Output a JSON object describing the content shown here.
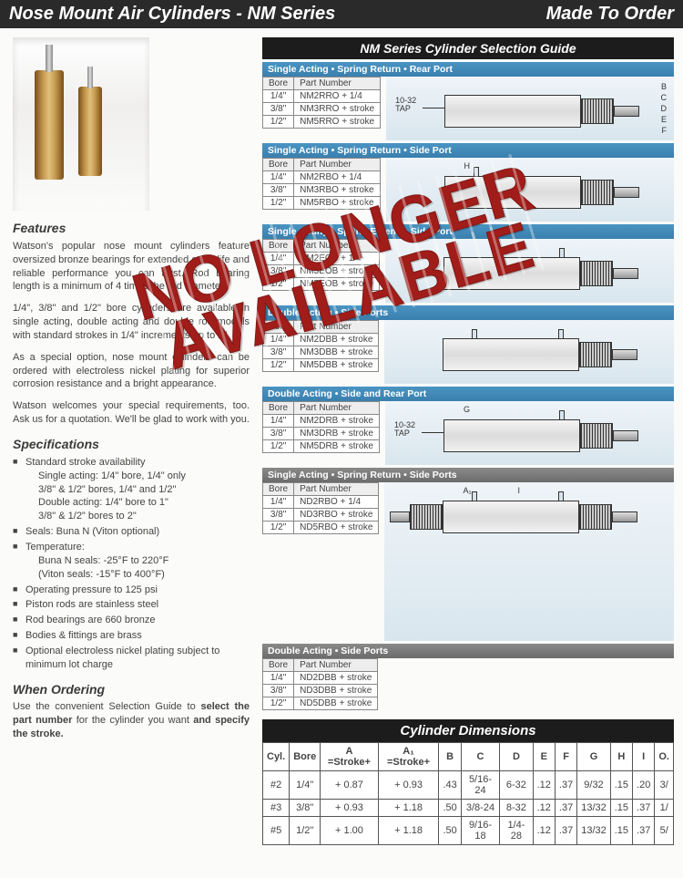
{
  "header": {
    "left": "Nose Mount Air Cylinders - NM Series",
    "right": "Made To Order"
  },
  "stamp": {
    "line1": "NO LONGER",
    "line2": "AVAILABLE",
    "color": "#a11d1a"
  },
  "features": {
    "title": "Features",
    "p1": "Watson's popular nose mount cylinders feature oversized bronze bearings for extended cycle life and reliable performance you can trust. Rod bearing length is a minimum of 4 times the rod diameter.",
    "p2": "1/4\", 3/8\" and 1/2\" bore cylinders are available in single acting, double acting and double rod models with standard strokes in 1/4\" increments up to 2\".",
    "p3": "As a special option, nose mount cylinders can be ordered with electroless nickel plating for superior corrosion resistance and a bright appearance.",
    "p4": "Watson welcomes your special requirements, too. Ask us for a quotation. We'll be glad to work with you."
  },
  "specs": {
    "title": "Specifications",
    "items": [
      "Standard stroke availability\nSingle acting: 1/4\" bore, 1/4\" only\n3/8\" & 1/2\" bores, 1/4\" and 1/2\"\nDouble acting: 1/4\" bore to 1\"\n3/8\" & 1/2\" bores to 2\"",
      "Seals: Buna N (Viton optional)",
      "Temperature:\nBuna N seals: -25°F to 220°F\n(Viton seals: -15°F to 400°F)",
      "Operating pressure to 125 psi",
      "Piston rods are stainless steel",
      "Rod bearings are 660 bronze",
      "Bodies & fittings are brass",
      "Optional electroless nickel plating subject to minimum lot charge"
    ]
  },
  "ordering": {
    "title": "When Ordering",
    "text": "Use the convenient Selection Guide to select the part number for the cylinder you want and specify the stroke."
  },
  "guide": {
    "title": "NM Series Cylinder Selection Guide",
    "configs": [
      {
        "heading": "Single Acting  •  Spring Return  •  Rear Port",
        "bore_header": "Bore",
        "pn_header": "Part Number",
        "rows": [
          [
            "1/4\"",
            "NM2RRO + 1/4"
          ],
          [
            "3/8\"",
            "NM3RRO + stroke"
          ],
          [
            "1/2\"",
            "NM5RRO + stroke"
          ]
        ],
        "tap": "10-32 TAP",
        "dims": [
          "B",
          "C",
          "D",
          "E",
          "F"
        ],
        "ports": []
      },
      {
        "heading": "Single Acting  •  Spring Return  •  Side Port",
        "bore_header": "Bore",
        "pn_header": "Part Number",
        "rows": [
          [
            "1/4\"",
            "NM2RBO + 1/4"
          ],
          [
            "3/8\"",
            "NM3RBO + stroke"
          ],
          [
            "1/2\"",
            "NM5RBO + stroke"
          ]
        ],
        "dims": [
          "H"
        ],
        "ports": [
          90
        ]
      },
      {
        "heading": "Single Acting  •  Spring Extend  •  Side Port",
        "bore_header": "Bore",
        "pn_header": "Part Number",
        "rows": [
          [
            "1/4\"",
            "NM2EOB + 1/4"
          ],
          [
            "3/8\"",
            "NM3EOB + stroke"
          ],
          [
            "1/2\"",
            "NM5EOB + stroke"
          ]
        ],
        "ports": [
          185
        ]
      },
      {
        "heading": "Double Acting  •  Side Ports",
        "bore_header": "Bore",
        "pn_header": "Part Number",
        "rows": [
          [
            "1/4\"",
            "NM2DBB + stroke"
          ],
          [
            "3/8\"",
            "NM3DBB + stroke"
          ],
          [
            "1/2\"",
            "NM5DBB + stroke"
          ]
        ],
        "ports": [
          90,
          185
        ]
      },
      {
        "heading": "Double Acting  •  Side and Rear Port",
        "bore_header": "Bore",
        "pn_header": "Part Number",
        "rows": [
          [
            "1/4\"",
            "NM2DRB + stroke"
          ],
          [
            "3/8\"",
            "NM3DRB + stroke"
          ],
          [
            "1/2\"",
            "NM5DRB + stroke"
          ]
        ],
        "tap": "10-32 TAP",
        "dims": [
          "G"
        ],
        "ports": [
          185
        ]
      },
      {
        "heading": "Single Acting  •  Spring Return  •  Side Ports",
        "grey": true,
        "bore_header": "Bore",
        "pn_header": "Part Number",
        "rows": [
          [
            "1/4\"",
            "ND2RBO + 1/4"
          ],
          [
            "3/8\"",
            "ND3RBO + stroke"
          ],
          [
            "1/2\"",
            "ND5RBO + stroke"
          ]
        ],
        "dims": [
          "A₁",
          "I"
        ],
        "ports": [
          90,
          185
        ],
        "double_rod": true
      },
      {
        "heading": "Double Acting  •  Side Ports",
        "grey": true,
        "bore_header": "Bore",
        "pn_header": "Part Number",
        "rows": [
          [
            "1/4\"",
            "ND2DBB + stroke"
          ],
          [
            "3/8\"",
            "ND3DBB + stroke"
          ],
          [
            "1/2\"",
            "ND5DBB + stroke"
          ]
        ],
        "merge_diagram_with_prev": true
      }
    ]
  },
  "dim_table": {
    "title": "Cylinder Dimensions",
    "headers": [
      "Cyl.",
      "Bore",
      "A =Stroke+",
      "A₁ =Stroke+",
      "B",
      "C",
      "D",
      "E",
      "F",
      "G",
      "H",
      "I",
      "O."
    ],
    "rows": [
      [
        "#2",
        "1/4\"",
        "+ 0.87",
        "+ 0.93",
        ".43",
        "5/16-24",
        "6-32",
        ".12",
        ".37",
        "9/32",
        ".15",
        ".20",
        "3/"
      ],
      [
        "#3",
        "3/8\"",
        "+ 0.93",
        "+ 1.18",
        ".50",
        "3/8-24",
        "8-32",
        ".12",
        ".37",
        "13/32",
        ".15",
        ".37",
        "1/"
      ],
      [
        "#5",
        "1/2\"",
        "+ 1.00",
        "+ 1.18",
        ".50",
        "9/16-18",
        "1/4-28",
        ".12",
        ".37",
        "13/32",
        ".15",
        ".37",
        "5/"
      ]
    ]
  }
}
